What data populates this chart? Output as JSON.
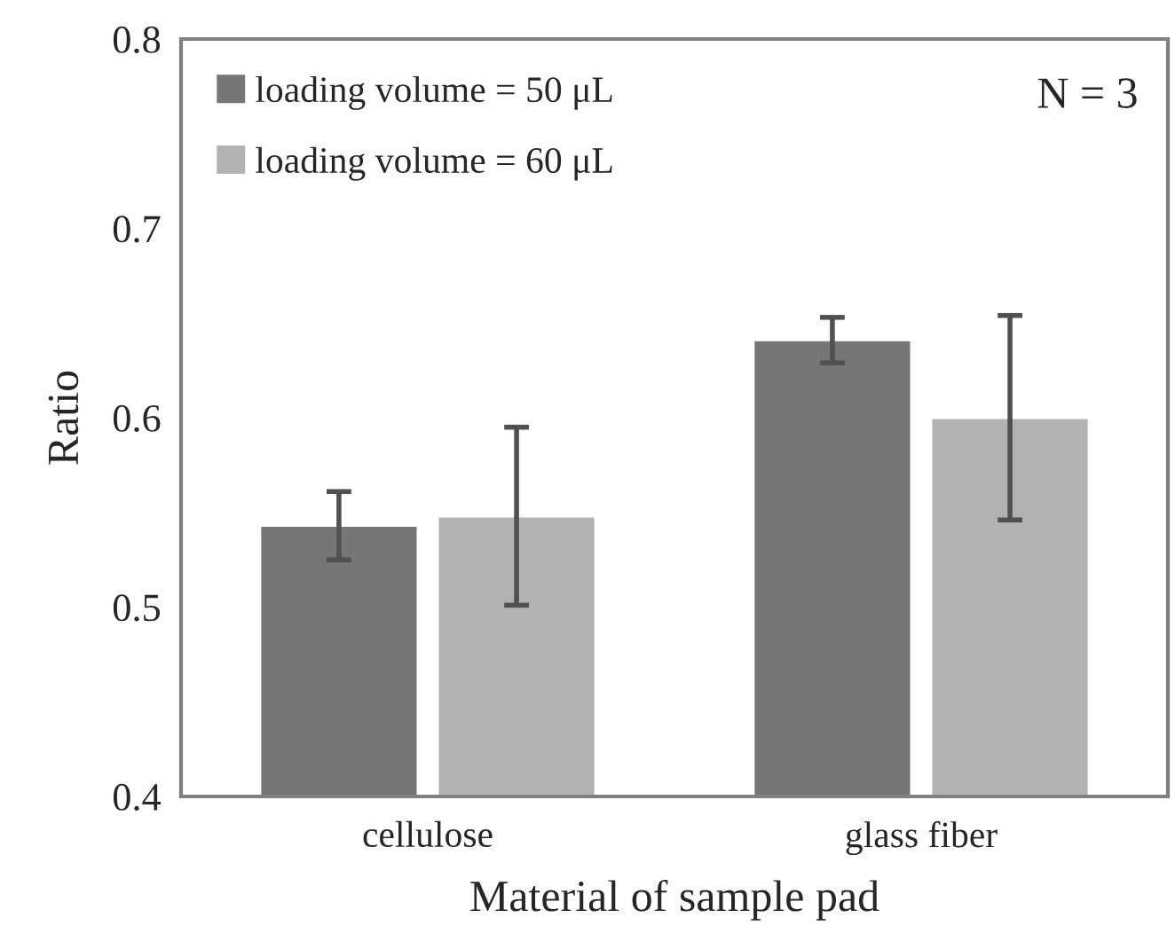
{
  "chart_data": {
    "type": "bar",
    "xlabel": "Material of sample pad",
    "ylabel": "Ratio",
    "categories": [
      "cellulose",
      "glass fiber"
    ],
    "series": [
      {
        "name": "loading volume = 50 μL",
        "color": "#767676",
        "values": [
          0.543,
          0.641
        ],
        "errors": [
          0.018,
          0.012
        ]
      },
      {
        "name": "loading volume = 60 μL",
        "color": "#b2b2b2",
        "values": [
          0.548,
          0.6
        ],
        "errors": [
          0.047,
          0.054
        ]
      }
    ],
    "ylim": [
      0.4,
      0.8
    ],
    "yticks": [
      0.4,
      0.5,
      0.6,
      0.7,
      0.8
    ],
    "grid": false,
    "legend": "top left",
    "annotations": [
      "N = 3"
    ]
  }
}
